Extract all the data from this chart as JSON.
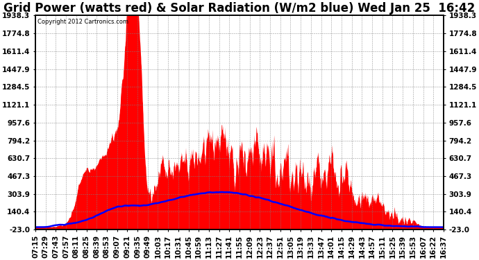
{
  "title": "Grid Power (watts red) & Solar Radiation (W/m2 blue) Wed Jan 25  16:42",
  "copyright": "Copyright 2012 Cartronics.com",
  "yticks": [
    -23.0,
    140.4,
    303.9,
    467.3,
    630.7,
    794.2,
    957.6,
    1121.1,
    1284.5,
    1447.9,
    1611.4,
    1774.8,
    1938.3
  ],
  "ymin": -23.0,
  "ymax": 1938.3,
  "xtick_labels": [
    "07:15",
    "07:29",
    "07:43",
    "07:57",
    "08:11",
    "08:25",
    "08:39",
    "08:53",
    "09:07",
    "09:21",
    "09:35",
    "09:49",
    "10:03",
    "10:17",
    "10:31",
    "10:45",
    "10:59",
    "11:13",
    "11:27",
    "11:41",
    "11:55",
    "12:09",
    "12:23",
    "12:37",
    "12:51",
    "13:05",
    "13:19",
    "13:33",
    "13:47",
    "14:01",
    "14:15",
    "14:29",
    "14:43",
    "14:57",
    "15:11",
    "15:25",
    "15:39",
    "15:53",
    "16:07",
    "16:22",
    "16:37"
  ],
  "bg_color": "#ffffff",
  "plot_bg_color": "#ffffff",
  "red_color": "#ff0000",
  "blue_color": "#0000ff",
  "title_fontsize": 12,
  "tick_fontsize": 7.5
}
